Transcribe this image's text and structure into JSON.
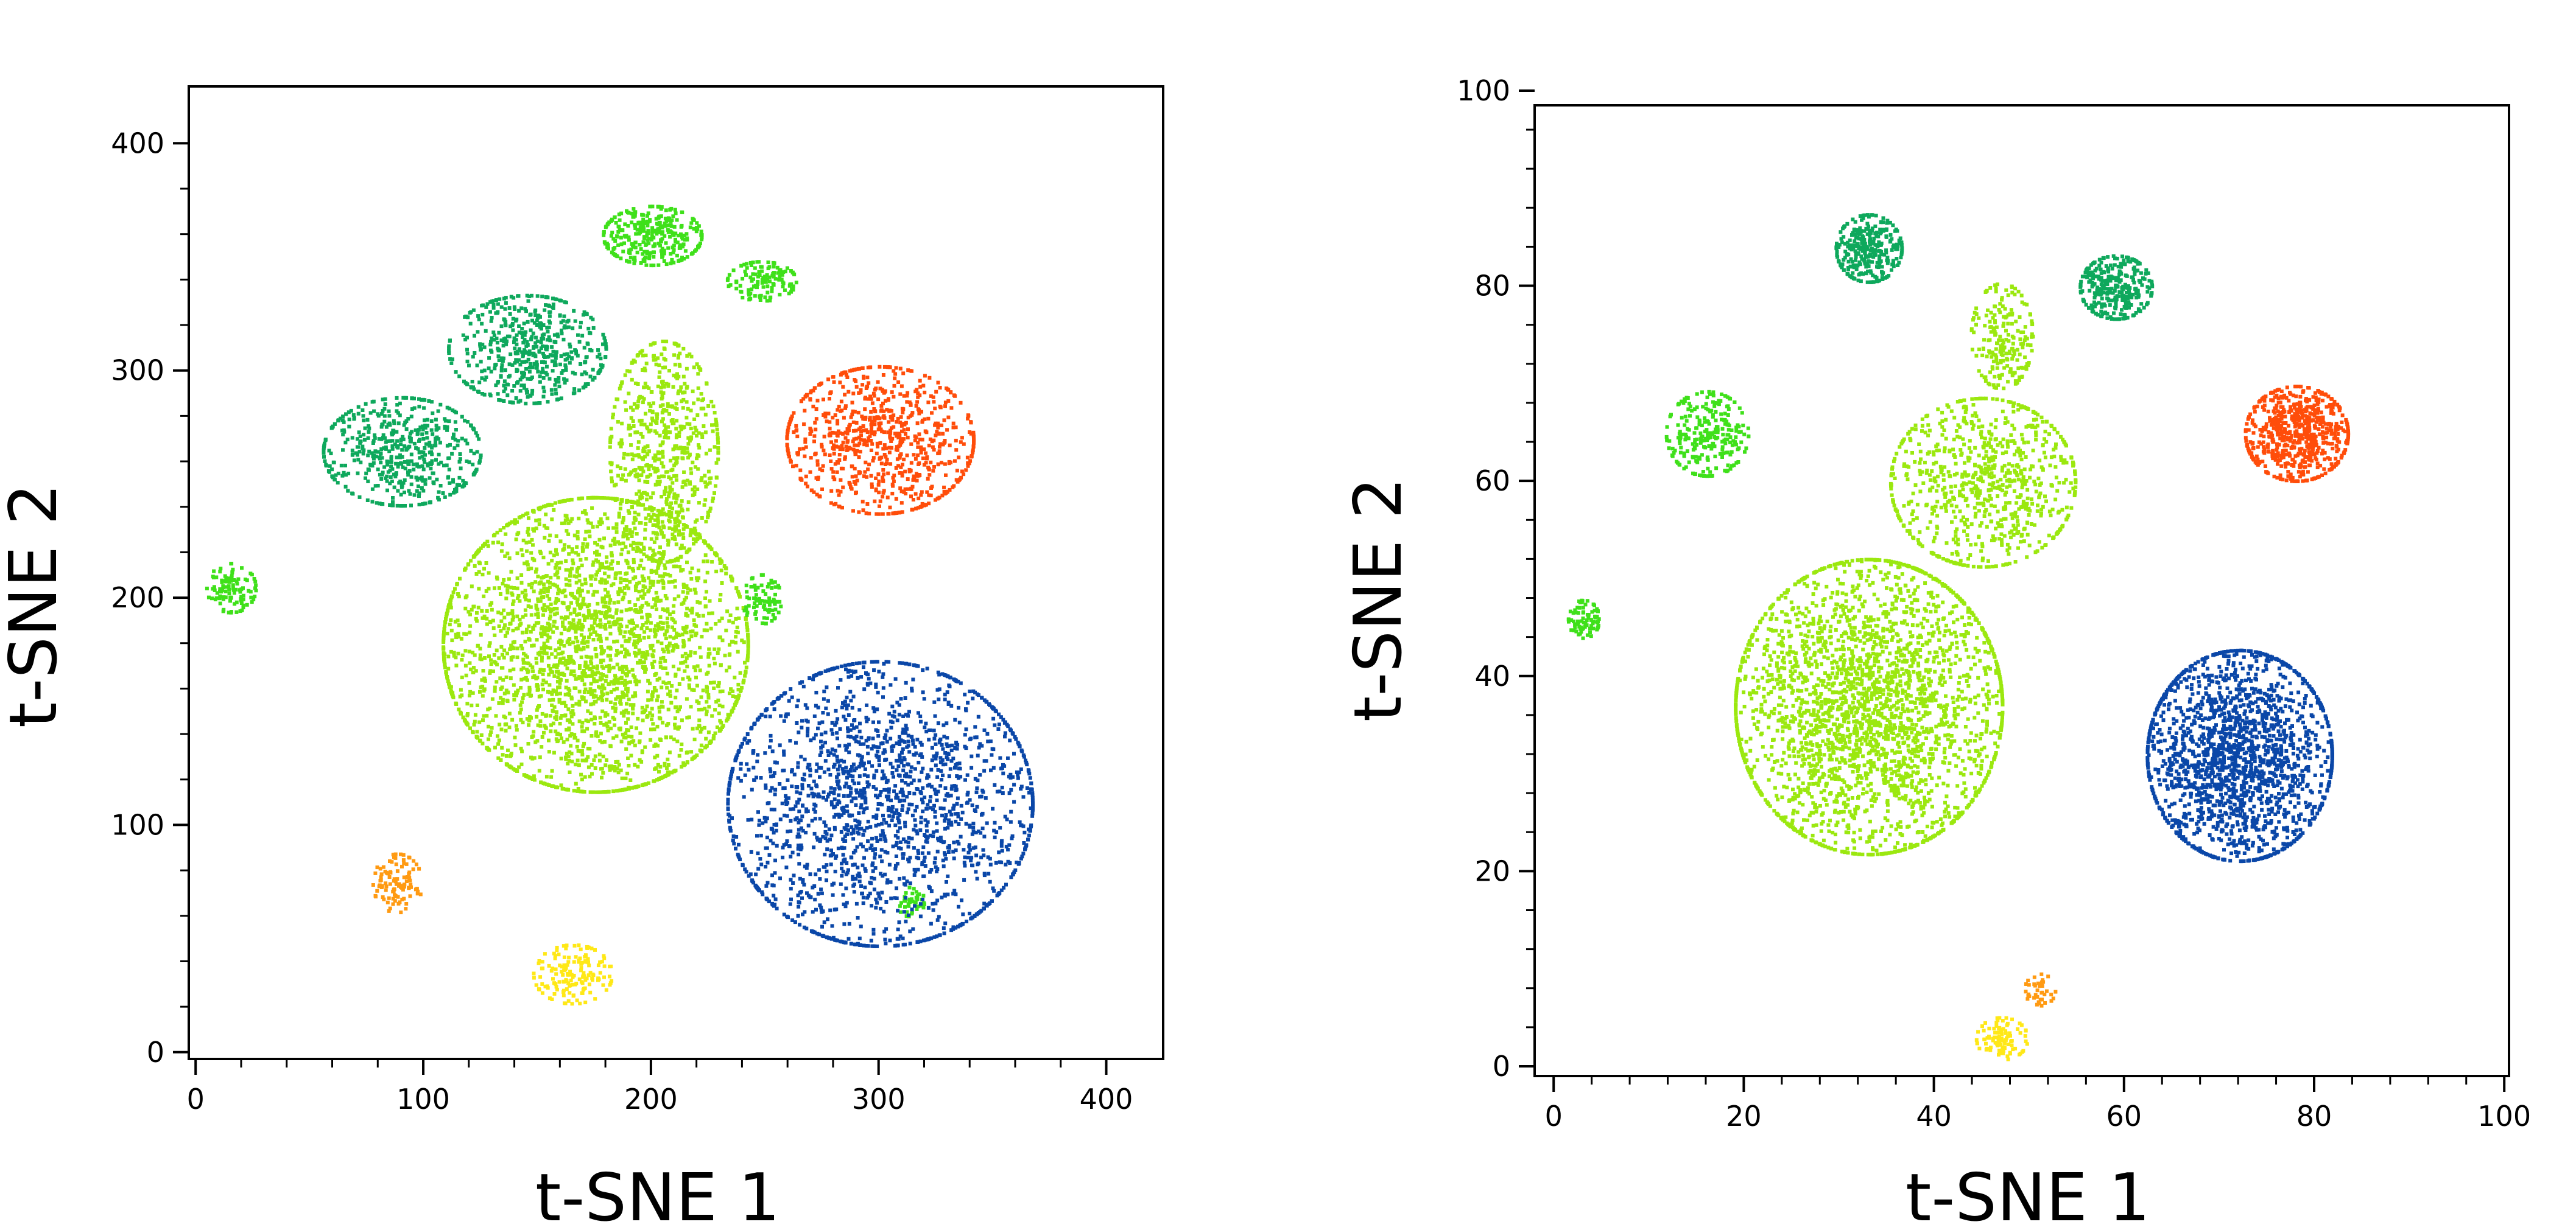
{
  "colors": {
    "light_green": "#9be80f",
    "bright_green": "#3fe01a",
    "dark_green": "#0ea85c",
    "orange_red": "#ff4d0a",
    "blue": "#0a47a8",
    "yellow": "#ffe817",
    "orange": "#ff9a12"
  },
  "chart_data": [
    {
      "type": "scatter",
      "title": "",
      "xlabel": "t-SNE 1",
      "ylabel": "t-SNE 2",
      "xlim": [
        -3,
        425
      ],
      "ylim": [
        -3,
        425
      ],
      "xticks": [
        "0",
        "100",
        "200",
        "300",
        "400"
      ],
      "yticks": [
        "0",
        "100",
        "200",
        "300",
        "400"
      ],
      "grid": false,
      "legend": "none",
      "clusters": [
        {
          "color": "light_green",
          "center": [
            175,
            180
          ],
          "spread": [
            62,
            60
          ],
          "relative_size": 1.0
        },
        {
          "color": "light_green",
          "center": [
            205,
            265
          ],
          "spread": [
            22,
            45
          ],
          "relative_size": 0.25
        },
        {
          "color": "bright_green",
          "center": [
            200,
            360
          ],
          "spread": [
            20,
            12
          ],
          "relative_size": 0.12
        },
        {
          "color": "bright_green",
          "center": [
            248,
            340
          ],
          "spread": [
            14,
            8
          ],
          "relative_size": 0.05
        },
        {
          "color": "bright_green",
          "center": [
            15,
            205
          ],
          "spread": [
            10,
            10
          ],
          "relative_size": 0.04
        },
        {
          "color": "bright_green",
          "center": [
            248,
            200
          ],
          "spread": [
            8,
            10
          ],
          "relative_size": 0.03
        },
        {
          "color": "bright_green",
          "center": [
            313,
            67
          ],
          "spread": [
            6,
            6
          ],
          "relative_size": 0.015
        },
        {
          "color": "dark_green",
          "center": [
            90,
            265
          ],
          "spread": [
            32,
            22
          ],
          "relative_size": 0.2
        },
        {
          "color": "dark_green",
          "center": [
            145,
            310
          ],
          "spread": [
            32,
            22
          ],
          "relative_size": 0.2
        },
        {
          "color": "orange_red",
          "center": [
            300,
            270
          ],
          "spread": [
            38,
            30
          ],
          "relative_size": 0.3
        },
        {
          "color": "blue",
          "center": [
            300,
            110
          ],
          "spread": [
            62,
            58
          ],
          "relative_size": 0.7
        },
        {
          "color": "yellow",
          "center": [
            165,
            35
          ],
          "spread": [
            16,
            12
          ],
          "relative_size": 0.06
        },
        {
          "color": "orange",
          "center": [
            88,
            75
          ],
          "spread": [
            10,
            12
          ],
          "relative_size": 0.04
        }
      ]
    },
    {
      "type": "scatter",
      "title": "",
      "xlabel": "t-SNE 1",
      "ylabel": "t-SNE 2",
      "xlim": [
        -2,
        100.5
      ],
      "ylim": [
        -1,
        98.5
      ],
      "xticks": [
        "0",
        "20",
        "40",
        "60",
        "80",
        "100"
      ],
      "yticks": [
        "0",
        "20",
        "40",
        "60",
        "80",
        "100"
      ],
      "grid": false,
      "legend": "none",
      "clusters": [
        {
          "color": "light_green",
          "center": [
            33,
            37
          ],
          "spread": [
            13,
            14
          ],
          "relative_size": 1.0
        },
        {
          "color": "light_green",
          "center": [
            45,
            60
          ],
          "spread": [
            9,
            8
          ],
          "relative_size": 0.3
        },
        {
          "color": "light_green",
          "center": [
            47,
            75
          ],
          "spread": [
            3,
            5
          ],
          "relative_size": 0.08
        },
        {
          "color": "blue",
          "center": [
            72,
            32
          ],
          "spread": [
            9,
            10
          ],
          "relative_size": 0.7
        },
        {
          "color": "orange_red",
          "center": [
            78,
            65
          ],
          "spread": [
            5,
            4.5
          ],
          "relative_size": 0.25
        },
        {
          "color": "dark_green",
          "center": [
            33,
            84
          ],
          "spread": [
            3.2,
            3.2
          ],
          "relative_size": 0.12
        },
        {
          "color": "dark_green",
          "center": [
            59,
            80
          ],
          "spread": [
            3.5,
            3
          ],
          "relative_size": 0.12
        },
        {
          "color": "bright_green",
          "center": [
            16,
            65
          ],
          "spread": [
            4,
            4
          ],
          "relative_size": 0.1
        },
        {
          "color": "bright_green",
          "center": [
            3,
            46
          ],
          "spread": [
            1.5,
            1.8
          ],
          "relative_size": 0.03
        },
        {
          "color": "yellow",
          "center": [
            47,
            3
          ],
          "spread": [
            2.5,
            2
          ],
          "relative_size": 0.04
        },
        {
          "color": "orange",
          "center": [
            51,
            8
          ],
          "spread": [
            1.5,
            1.5
          ],
          "relative_size": 0.015
        }
      ]
    }
  ]
}
